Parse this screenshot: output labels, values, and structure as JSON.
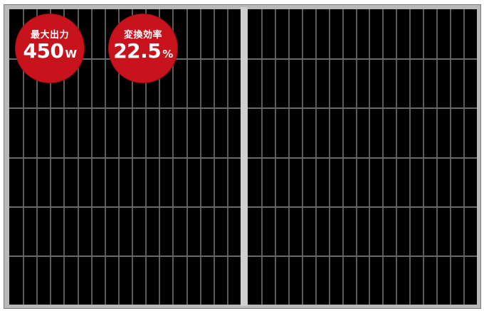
{
  "colors": {
    "panel_cells": "#000000",
    "panel_frame": "#b9b9b9",
    "badge_red": "#c8121c",
    "badge_text": "#ffffff"
  },
  "badges": [
    {
      "label": "最大出力",
      "value": "450",
      "unit": "W"
    },
    {
      "label": "変換効率",
      "value": "22.5",
      "unit": "%"
    }
  ]
}
